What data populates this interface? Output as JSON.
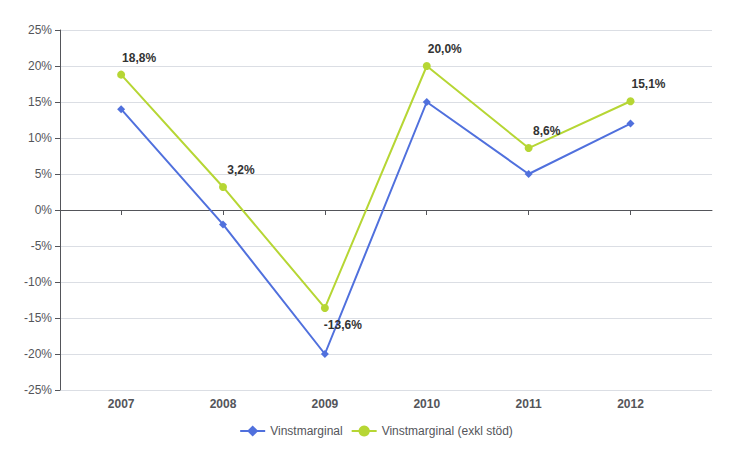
{
  "chart_data": {
    "type": "line",
    "x": [
      2007,
      2008,
      2009,
      2010,
      2011,
      2012
    ],
    "series": [
      {
        "name": "Vinstmarginal",
        "values": [
          0.14,
          -0.02,
          -0.2,
          0.15,
          0.05,
          0.12
        ],
        "marker": "diamond"
      },
      {
        "name": "Vinstmarginal (exkl stöd)",
        "values": [
          0.188,
          0.032,
          -0.136,
          0.2,
          0.086,
          0.151
        ],
        "marker": "circle"
      }
    ],
    "xlim": [
      2006.4,
      2012.8
    ],
    "xticks": [
      2007,
      2008,
      2009,
      2010,
      2011,
      2012
    ],
    "ylim": [
      -0.25,
      0.25
    ],
    "yticks": [
      {
        "value": -0.25,
        "label": "-25%"
      },
      {
        "value": -0.2,
        "label": "-20%"
      },
      {
        "value": -0.15,
        "label": "-15%"
      },
      {
        "value": -0.1,
        "label": "-10%"
      },
      {
        "value": -0.05,
        "label": "-5%"
      },
      {
        "value": 0.0,
        "label": "0%"
      },
      {
        "value": 0.05,
        "label": "5%"
      },
      {
        "value": 0.1,
        "label": "10%"
      },
      {
        "value": 0.15,
        "label": "15%"
      },
      {
        "value": 0.2,
        "label": "20%"
      },
      {
        "value": 0.25,
        "label": "25%"
      }
    ],
    "grid": true,
    "legend": "bottom",
    "annotations": [
      {
        "x": 2007,
        "y": 0.188,
        "text": "18,8%"
      },
      {
        "x": 2008,
        "y": 0.032,
        "text": "3,2%"
      },
      {
        "x": 2009,
        "y": -0.136,
        "text": "-13,6%"
      },
      {
        "x": 2010,
        "y": 0.2,
        "text": "20,0%"
      },
      {
        "x": 2011,
        "y": 0.086,
        "text": "8,6%"
      },
      {
        "x": 2012,
        "y": 0.151,
        "text": "15,1%"
      }
    ]
  }
}
